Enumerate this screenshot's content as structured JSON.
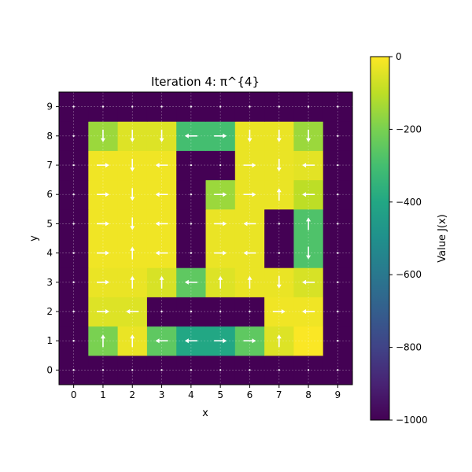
{
  "chart_data": {
    "type": "heatmap",
    "title": "Iteration 4:  π^{4}",
    "xlabel": "x",
    "ylabel": "y",
    "x_ticks": [
      "0",
      "1",
      "2",
      "3",
      "4",
      "5",
      "6",
      "7",
      "8",
      "9"
    ],
    "y_ticks": [
      "0",
      "1",
      "2",
      "3",
      "4",
      "5",
      "6",
      "7",
      "8",
      "9"
    ],
    "xlim": [
      -0.5,
      9.5
    ],
    "ylim": [
      -0.5,
      9.5
    ],
    "grid": true,
    "colormap": "viridis",
    "colorbar": {
      "label": "Value  J(x)",
      "range": [
        -1000,
        0
      ],
      "ticks": [
        "0",
        "−200",
        "−400",
        "−600",
        "−800",
        "−1000"
      ],
      "tick_values": [
        0,
        -200,
        -400,
        -600,
        -800,
        -1000
      ]
    },
    "values": [
      [
        -1000,
        -1000,
        -1000,
        -1000,
        -1000,
        -1000,
        -1000,
        -1000,
        -1000,
        -1000
      ],
      [
        -1000,
        -200,
        -30,
        -250,
        -400,
        -400,
        -250,
        -50,
        -5,
        -1000
      ],
      [
        -1000,
        -50,
        -50,
        -1000,
        -1000,
        -1000,
        -1000,
        -20,
        -20,
        -1000
      ],
      [
        -1000,
        -30,
        -30,
        -60,
        -250,
        -50,
        -30,
        -30,
        -60,
        -1000
      ],
      [
        -1000,
        -20,
        -20,
        -20,
        -1000,
        -30,
        -30,
        -1000,
        -280,
        -1000
      ],
      [
        -1000,
        -20,
        -20,
        -20,
        -1000,
        -30,
        -30,
        -1000,
        -280,
        -1000
      ],
      [
        -1000,
        -20,
        -20,
        -20,
        -1000,
        -150,
        -30,
        -30,
        -100,
        -1000
      ],
      [
        -1000,
        -20,
        -20,
        -20,
        -1000,
        -1000,
        -30,
        -30,
        -40,
        -1000
      ],
      [
        -1000,
        -150,
        -50,
        -50,
        -300,
        -300,
        -30,
        -30,
        -150,
        -1000
      ],
      [
        -1000,
        -1000,
        -1000,
        -1000,
        -1000,
        -1000,
        -1000,
        -1000,
        -1000,
        -1000
      ]
    ],
    "policy": [
      [
        "dot",
        "dot",
        "dot",
        "dot",
        "dot",
        "dot",
        "dot",
        "dot",
        "dot",
        "dot"
      ],
      [
        "dot",
        "up",
        "up",
        "left",
        "left",
        "right",
        "right",
        "up",
        "none",
        "dot"
      ],
      [
        "dot",
        "right",
        "left",
        "dot",
        "dot",
        "dot",
        "dot",
        "right",
        "left",
        "dot"
      ],
      [
        "dot",
        "right",
        "up",
        "up",
        "left",
        "up",
        "up",
        "down",
        "left",
        "dot"
      ],
      [
        "dot",
        "right",
        "up",
        "left",
        "dot",
        "right",
        "left",
        "dot",
        "down",
        "dot"
      ],
      [
        "dot",
        "right",
        "down",
        "left",
        "dot",
        "right",
        "left",
        "dot",
        "up",
        "dot"
      ],
      [
        "dot",
        "right",
        "down",
        "left",
        "dot",
        "right",
        "right",
        "up",
        "left",
        "dot"
      ],
      [
        "dot",
        "right",
        "down",
        "left",
        "dot",
        "dot",
        "right",
        "down",
        "left",
        "dot"
      ],
      [
        "dot",
        "down",
        "down",
        "down",
        "left",
        "right",
        "down",
        "down",
        "down",
        "dot"
      ],
      [
        "dot",
        "dot",
        "dot",
        "dot",
        "dot",
        "dot",
        "dot",
        "dot",
        "dot",
        "dot"
      ]
    ]
  }
}
